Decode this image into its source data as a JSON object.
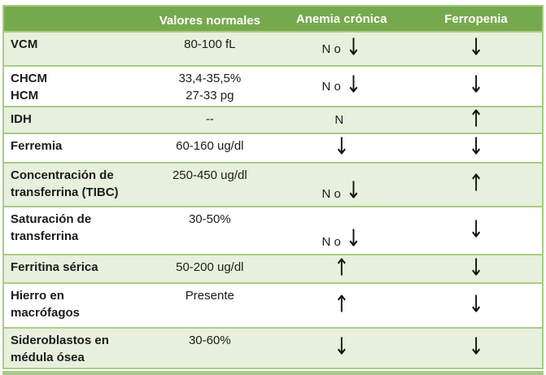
{
  "header": {
    "col_label": "",
    "normal_values": "Valores normales",
    "chronic_anemia": "Anemia crónica",
    "iron_deficiency": "Ferropenia"
  },
  "rows": [
    {
      "label": "VCM",
      "label2": "",
      "normal": "80-100 fL",
      "normal2": "",
      "cronica": {
        "text": "N o",
        "arrow": "↓"
      },
      "ferropenia": {
        "text": "",
        "arrow": "↓"
      }
    },
    {
      "label": "CHCM",
      "label2": "HCM",
      "normal": "33,4-35,5%",
      "normal2": "27-33 pg",
      "cronica": {
        "text": "N o",
        "arrow": "↓"
      },
      "ferropenia": {
        "text": "",
        "arrow": "↓"
      }
    },
    {
      "label": "IDH",
      "label2": "",
      "normal": "--",
      "normal2": "",
      "cronica": {
        "text": "N",
        "arrow": ""
      },
      "ferropenia": {
        "text": "",
        "arrow": "↑"
      }
    },
    {
      "label": "Ferremia",
      "label2": "",
      "normal": "60-160 ug/dl",
      "normal2": "",
      "cronica": {
        "text": "",
        "arrow": "↓"
      },
      "ferropenia": {
        "text": "",
        "arrow": "↓"
      }
    },
    {
      "label": "Concentración de",
      "label2": "transferrina (TIBC)",
      "normal": "250-450 ug/dl",
      "normal2": "",
      "cronica": {
        "text": "N o",
        "arrow": "↓"
      },
      "ferropenia": {
        "text": "",
        "arrow": "↑"
      }
    },
    {
      "label": "Saturación de",
      "label2": "transferrina",
      "normal": "30-50%",
      "normal2": "",
      "cronica": {
        "text": "N o",
        "arrow": "↓"
      },
      "ferropenia": {
        "text": "",
        "arrow": "↓"
      }
    },
    {
      "label": "Ferritina sérica",
      "label2": "",
      "normal": "50-200 ug/dl",
      "normal2": "",
      "cronica": {
        "text": "",
        "arrow": "↑"
      },
      "ferropenia": {
        "text": "",
        "arrow": "↓"
      }
    },
    {
      "label": "Hierro en",
      "label2": "macrófagos",
      "normal": "Presente",
      "normal2": "",
      "cronica": {
        "text": "",
        "arrow": "↑"
      },
      "ferropenia": {
        "text": "",
        "arrow": "↓"
      }
    },
    {
      "label": "Sideroblastos en",
      "label2": "médula ósea",
      "normal": "30-60%",
      "normal2": "",
      "cronica": {
        "text": "",
        "arrow": "↓"
      },
      "ferropenia": {
        "text": "",
        "arrow": "↓"
      }
    }
  ],
  "colors": {
    "header_green": "#76a94d",
    "row_light_green": "#e7f0dc",
    "border_green": "#a9cc85",
    "text": "#1c1c1c",
    "header_text": "#ffffff",
    "arrow": "#111111"
  },
  "chart_data": {
    "type": "table",
    "title": "",
    "columns": [
      "",
      "Valores normales",
      "Anemia crónica",
      "Ferropenia"
    ],
    "rows": [
      [
        "VCM",
        "80-100 fL",
        "N o ↓",
        "↓"
      ],
      [
        "CHCM / HCM",
        "33,4-35,5% / 27-33 pg",
        "N o ↓",
        "↓"
      ],
      [
        "IDH",
        "--",
        "N",
        "↑"
      ],
      [
        "Ferremia",
        "60-160 ug/dl",
        "↓",
        "↓"
      ],
      [
        "Concentración de transferrina (TIBC)",
        "250-450 ug/dl",
        "N o ↓",
        "↑"
      ],
      [
        "Saturación de transferrina",
        "30-50%",
        "N o ↓",
        "↓"
      ],
      [
        "Ferritina sérica",
        "50-200 ug/dl",
        "↑",
        "↓"
      ],
      [
        "Hierro en macrófagos",
        "Presente",
        "↑",
        "↓"
      ],
      [
        "Sideroblastos en médula ósea",
        "30-60%",
        "↓",
        "↓"
      ]
    ]
  }
}
